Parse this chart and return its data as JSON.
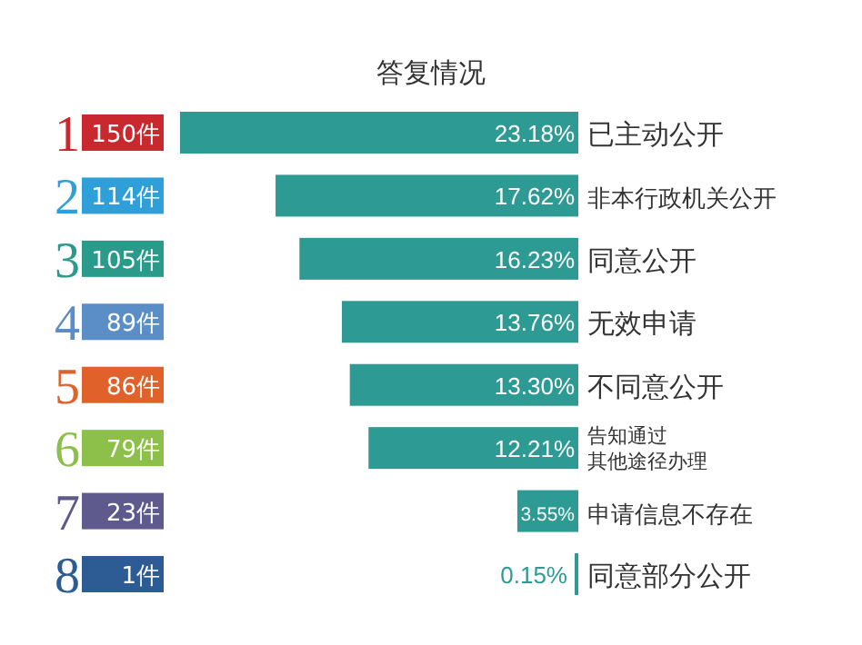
{
  "chart_data": {
    "type": "bar",
    "orientation": "horizontal",
    "title": "答复情况",
    "categories": [
      "已主动公开",
      "非本行政机关公开",
      "同意公开",
      "无效申请",
      "不同意公开",
      "告知通过其他途径办理",
      "申请信息不存在",
      "同意部分公开"
    ],
    "values": [
      23.18,
      17.62,
      16.23,
      13.76,
      13.3,
      12.21,
      3.55,
      0.15
    ],
    "value_labels": [
      "23.18%",
      "17.62%",
      "16.23%",
      "13.76%",
      "13.30%",
      "12.21%",
      "3.55%",
      "0.15%"
    ],
    "color": "#2e9a94",
    "annotations": [
      "1",
      "150件",
      "2",
      "114件",
      "3",
      "105件",
      "4",
      "89件",
      "5",
      "86件",
      "6",
      "79件",
      "7",
      "23件",
      "8",
      "1件"
    ]
  }
}
